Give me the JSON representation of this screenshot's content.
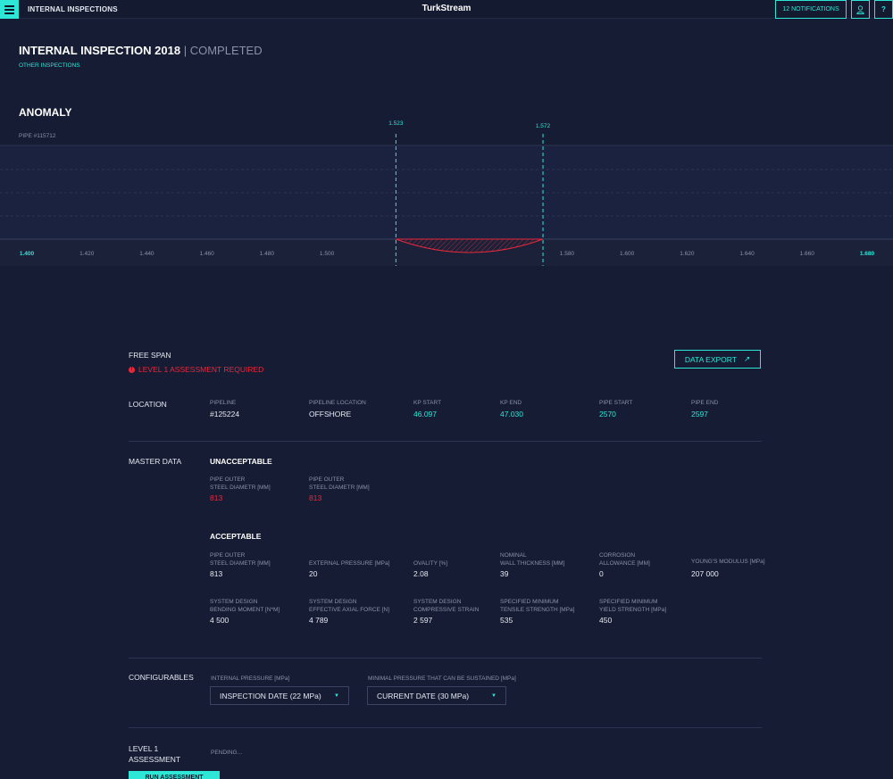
{
  "topbar": {
    "section": "INTERNAL INSPECTIONS",
    "brand": "TurkStream",
    "notifications_label": "12 NOTIFICATIONS",
    "user_icon": "user-icon",
    "help_label": "?"
  },
  "header": {
    "title": "INTERNAL INSPECTION 2018",
    "status": "| COMPLETED",
    "other_link": "OTHER INSPECTIONS"
  },
  "anomaly": {
    "title": "ANOMALY",
    "pipe": "PIPE #115712",
    "chart_data": {
      "type": "area",
      "x_ticks": [
        "1.400",
        "1.420",
        "1.440",
        "1.460",
        "1.480",
        "1.500",
        "1.580",
        "1.600",
        "1.620",
        "1.640",
        "1.660",
        "1.680"
      ],
      "xlim": [
        1.4,
        1.68
      ],
      "markers": [
        {
          "label": "1.523",
          "x": 1.523
        },
        {
          "label": "1.572",
          "x": 1.572
        }
      ],
      "highlight_range": [
        1.523,
        1.572
      ],
      "colors": {
        "area": "#e8283c",
        "marker": "#2ee6d6",
        "edge_ticks": "#2ee6d6"
      }
    }
  },
  "free_span": {
    "label": "FREE SPAN",
    "alert": "LEVEL 1 ASSESSMENT REQUIRED",
    "alert_icon": "!",
    "export_label": "DATA EXPORT",
    "export_icon": "↗"
  },
  "location": {
    "label": "LOCATION",
    "fields": [
      {
        "label": "PIPELINE",
        "value": "#125224"
      },
      {
        "label": "PIPELINE LOCATION",
        "value": "OFFSHORE"
      },
      {
        "label": "KP START",
        "value": "46.097"
      },
      {
        "label": "KP END",
        "value": "47.030"
      },
      {
        "label": "PIPE START",
        "value": "2570"
      },
      {
        "label": "PIPE END",
        "value": "2597"
      }
    ]
  },
  "master": {
    "label": "MASTER DATA",
    "unacceptable": {
      "heading": "UNACCEPTABLE",
      "fields": [
        {
          "label": "PIPE OUTER\nSTEEL DIAMETR [MM]",
          "value": "813"
        },
        {
          "label": "PIPE OUTER\nSTEEL DIAMETR [MM]",
          "value": "813"
        }
      ]
    },
    "acceptable": {
      "heading": "ACCEPTABLE",
      "row1": [
        {
          "label": "PIPE OUTER\nSTEEL DIAMETR [MM]",
          "value": "813"
        },
        {
          "label": "EXTERNAL PRESSURE [MPa]",
          "value": "20"
        },
        {
          "label": "OVALITY [%]",
          "value": "2.08"
        },
        {
          "label": "NOMINAL\nWALL THICKNESS [MM]",
          "value": "39"
        },
        {
          "label": "CORROSION\nALLOWANCE [MM]",
          "value": "0"
        },
        {
          "label": "YOUNG'S MODULUS [MPa]",
          "value": "207 000"
        }
      ],
      "row2": [
        {
          "label": "SYSTEM DESIGN\nBENDING MOMENT [N*M]",
          "value": "4 500"
        },
        {
          "label": "SYSTEM DESIGN\nEFFECTIVE AXIAL FORCE [N]",
          "value": "4 789"
        },
        {
          "label": "SYSTEM DESIGN\nCOMPRESSIVE STRAIN",
          "value": "2 597"
        },
        {
          "label": "SPECIFIED MINIMUM\nTENSILE STRENGTH [MPa]",
          "value": "535"
        },
        {
          "label": "SPECIFIED MINIMUM\nYIELD STRENGTH [MPa]",
          "value": "450"
        }
      ]
    }
  },
  "configurables": {
    "label": "CONFIGURABLES",
    "internal_label": "INTERNAL PRESSURE [MPa]",
    "internal_value": "INSPECTION DATE (22 MPa)",
    "minimal_label": "MINIMAL PRESSURE THAT CAN BE SUSTAINED [MPa]",
    "minimal_value": "CURRENT DATE (30 MPa)",
    "caret": "▼"
  },
  "assessment": {
    "label": "LEVEL 1\nASSESSMENT",
    "status": "PENDING...",
    "run_label": "RUN ASSESSMENT"
  }
}
